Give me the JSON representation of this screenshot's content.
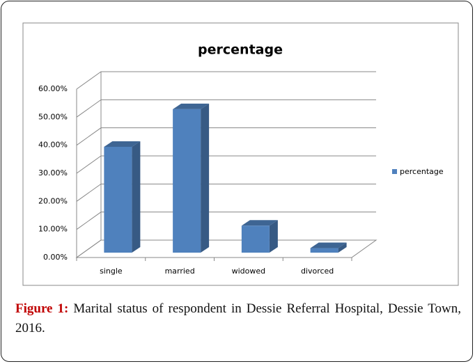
{
  "chart_data": {
    "type": "bar3d",
    "title": "percentage",
    "categories": [
      "single",
      "married",
      "widowed",
      "divorced"
    ],
    "series": [
      {
        "name": "percentage",
        "color": "#4f81bd",
        "values": [
          37.7,
          51.1,
          9.6,
          1.6
        ]
      }
    ],
    "ylim": [
      0,
      60
    ],
    "yticks": [
      {
        "value": 0,
        "label": "0.00%"
      },
      {
        "value": 10,
        "label": "10.00%"
      },
      {
        "value": 20,
        "label": "20.00%"
      },
      {
        "value": 30,
        "label": "30.00%"
      },
      {
        "value": 40,
        "label": "40.00%"
      },
      {
        "value": 50,
        "label": "50.00%"
      },
      {
        "value": 60,
        "label": "60.00%"
      }
    ],
    "grid": true,
    "legend": "right"
  },
  "caption": {
    "label": "Figure 1:",
    "text": "Marital status of respondent in Dessie Referral Hospital, Dessie Town, 2016."
  }
}
